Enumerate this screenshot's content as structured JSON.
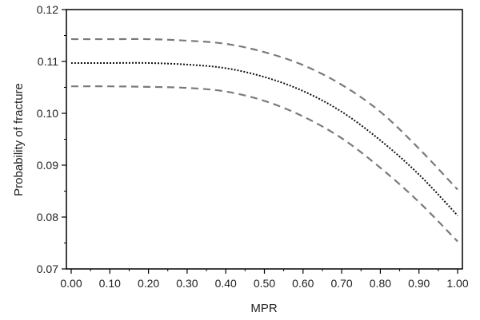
{
  "chart_data": {
    "type": "line",
    "title": "",
    "xlabel": "MPR",
    "ylabel": "Probability of fracture",
    "xlim": [
      0.0,
      1.0
    ],
    "ylim": [
      0.07,
      0.12
    ],
    "x_ticks": [
      "0.00",
      "0.10",
      "0.20",
      "0.30",
      "0.40",
      "0.50",
      "0.60",
      "0.70",
      "0.80",
      "0.90",
      "1.00"
    ],
    "y_ticks": [
      "0.07",
      "0.08",
      "0.09",
      "0.10",
      "0.11",
      "0.12"
    ],
    "grid": false,
    "legend": "none",
    "x": [
      0.0,
      0.1,
      0.2,
      0.3,
      0.4,
      0.5,
      0.6,
      0.7,
      0.8,
      0.9,
      1.0
    ],
    "series": [
      {
        "style": "dotted",
        "color": "#111111",
        "values": [
          0.1097,
          0.1097,
          0.1097,
          0.1094,
          0.1087,
          0.107,
          0.1043,
          0.1003,
          0.0948,
          0.0882,
          0.0803
        ]
      },
      {
        "style": "dashed",
        "color": "#7a7a7a",
        "values": [
          0.1143,
          0.1143,
          0.1143,
          0.114,
          0.1134,
          0.1118,
          0.1093,
          0.1055,
          0.1003,
          0.0932,
          0.0853
        ]
      },
      {
        "style": "dashed",
        "color": "#7a7a7a",
        "values": [
          0.1052,
          0.1052,
          0.1051,
          0.1049,
          0.1042,
          0.1024,
          0.0994,
          0.0952,
          0.0895,
          0.0829,
          0.0753
        ]
      }
    ]
  }
}
